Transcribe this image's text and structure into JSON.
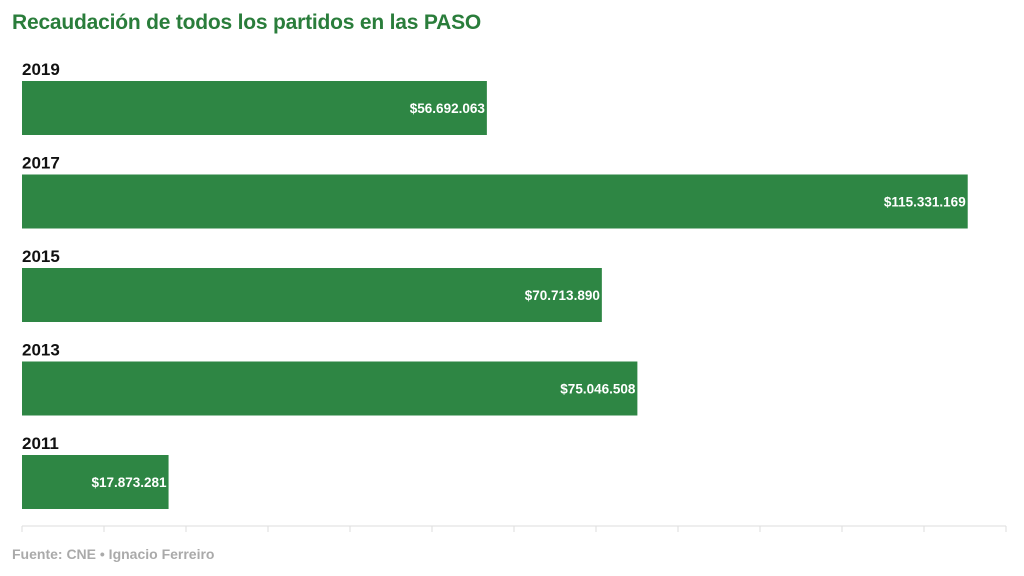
{
  "colors": {
    "bar": "#2e8644",
    "title": "#2a7d3b",
    "category": "#111111",
    "value_label": "#ffffff",
    "axis": "#dddddd",
    "source": "#aaaaaa"
  },
  "chart_data": {
    "type": "bar",
    "orientation": "horizontal",
    "title": "Recaudación de todos los partidos en las PASO",
    "categories": [
      "2019",
      "2017",
      "2015",
      "2013",
      "2011"
    ],
    "values": [
      56692063,
      115331169,
      70713890,
      75046508,
      17873281
    ],
    "value_labels": [
      "$56.692.063",
      "$115.331.169",
      "$70.713.890",
      "$75.046.508",
      "$17.873.281"
    ],
    "xlim": [
      0,
      120000000
    ],
    "grid": false,
    "legend": "none"
  },
  "footer": {
    "source": "Fuente: CNE • Ignacio Ferreiro"
  }
}
